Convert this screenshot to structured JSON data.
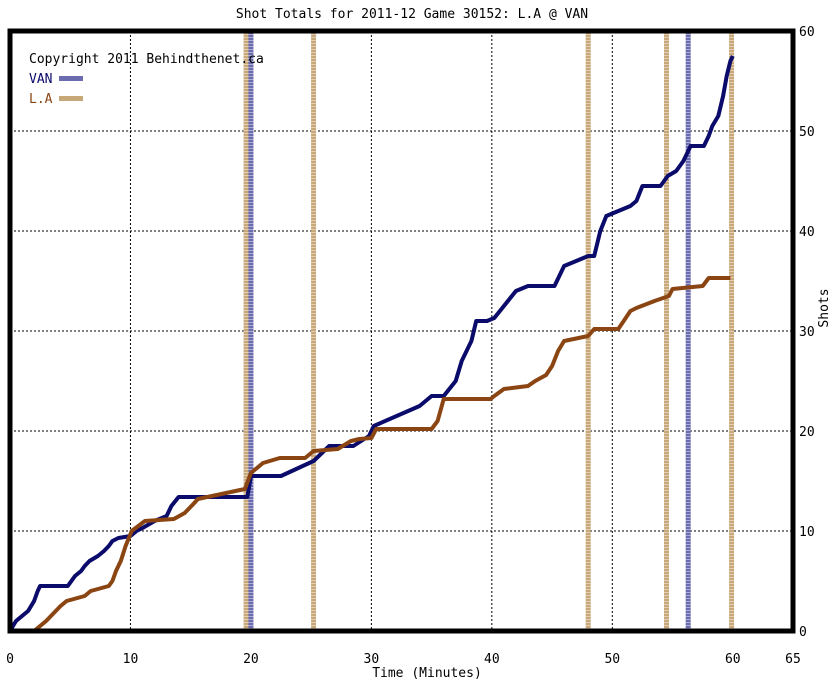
{
  "chart_data": {
    "type": "line",
    "title": "Shot Totals for 2011-12 Game 30152: L.A @ VAN",
    "xlabel": "Time (Minutes)",
    "ylabel": "Shots",
    "copyright": "Copyright 2011 Behindthenet.ca",
    "xlim": [
      0,
      65
    ],
    "ylim": [
      0,
      60
    ],
    "x_ticks": [
      0,
      10,
      20,
      30,
      40,
      50,
      60,
      65
    ],
    "y_ticks": [
      0,
      10,
      20,
      30,
      40,
      50,
      60
    ],
    "y_axis_side": "right",
    "legend_position": "top-left",
    "grid": true,
    "colors": {
      "VAN": "#0b0b6b",
      "L.A": "#8b4513",
      "grid": "#000000",
      "VAN_marker": "#6b6bb0",
      "L.A_marker": "#c8a878"
    },
    "series": [
      {
        "name": "VAN",
        "x": [
          0,
          0.5,
          1.5,
          2.0,
          2.3,
          2.5,
          4.8,
          5.4,
          5.9,
          6.2,
          6.6,
          7.3,
          7.8,
          8.2,
          8.5,
          9.0,
          10.0,
          10.5,
          11.0,
          12.0,
          13.0,
          13.4,
          14.0,
          19.7,
          20.0,
          22.5,
          25.2,
          26.5,
          27.0,
          28.5,
          29.8,
          30.2,
          34.0,
          35.0,
          36.0,
          37.0,
          37.5,
          38.3,
          38.7,
          39.2,
          39.6,
          40.2,
          41.0,
          42.0,
          43.0,
          45.2,
          46.0,
          47.0,
          48.0,
          48.5,
          49.0,
          49.5,
          51.5,
          52.0,
          52.5,
          54.0,
          54.6,
          55.3,
          55.9,
          56.5,
          57.6,
          58.0,
          58.3,
          58.8,
          59.2,
          59.5,
          59.8,
          60.0
        ],
        "values": [
          0,
          1,
          2,
          3,
          4,
          4.5,
          4.5,
          5.5,
          6,
          6.5,
          7,
          7.5,
          8,
          8.5,
          9,
          9.3,
          9.5,
          10,
          10.3,
          11,
          11.5,
          12.5,
          13.4,
          13.4,
          15.5,
          15.5,
          17,
          18.5,
          18.5,
          18.5,
          19.5,
          20.5,
          22.5,
          23.5,
          23.5,
          25,
          27,
          29,
          31,
          31,
          31,
          31.3,
          32.5,
          34,
          34.5,
          34.5,
          36.5,
          37,
          37.5,
          37.5,
          40,
          41.5,
          42.5,
          43,
          44.5,
          44.5,
          45.5,
          46,
          47,
          48.5,
          48.5,
          49.5,
          50.5,
          51.5,
          53.5,
          55.5,
          57,
          57.5
        ]
      },
      {
        "name": "L.A",
        "x": [
          0,
          2.0,
          2.5,
          3.0,
          4.2,
          4.7,
          6.2,
          6.7,
          8.2,
          8.5,
          8.8,
          9.2,
          9.6,
          10.1,
          11.2,
          13.6,
          14.5,
          15.3,
          15.6,
          19.5,
          20.0,
          21.0,
          22.4,
          24.5,
          25.2,
          27.2,
          28.3,
          29.0,
          30.0,
          30.4,
          35.0,
          35.5,
          36.0,
          39.9,
          40.2,
          41.0,
          43.0,
          43.6,
          44.5,
          45.0,
          45.5,
          46.0,
          48.0,
          48.5,
          49.0,
          50.5,
          51.5,
          52.0,
          53.5,
          54.7,
          55.0,
          57.5,
          58.0,
          59.8
        ],
        "values": [
          0,
          0,
          0.5,
          1,
          2.5,
          3,
          3.5,
          4,
          4.5,
          5,
          6,
          7,
          8.5,
          10,
          11,
          11.2,
          11.8,
          12.8,
          13.2,
          14.2,
          15.8,
          16.8,
          17.3,
          17.3,
          18,
          18.2,
          19,
          19.2,
          19.3,
          20.2,
          20.2,
          21,
          23.2,
          23.2,
          23.5,
          24.2,
          24.5,
          25,
          25.6,
          26.5,
          28,
          29,
          29.5,
          30.2,
          30.2,
          30.2,
          32,
          32.3,
          33,
          33.5,
          34.2,
          34.5,
          35.3,
          35.3
        ]
      }
    ],
    "period_markers": [
      {
        "team": "L.A",
        "x": 19.6
      },
      {
        "team": "VAN",
        "x": 20.0
      },
      {
        "team": "L.A",
        "x": 25.2
      },
      {
        "team": "L.A",
        "x": 48.0
      },
      {
        "team": "L.A",
        "x": 54.5
      },
      {
        "team": "VAN",
        "x": 56.3
      },
      {
        "team": "L.A",
        "x": 59.9
      }
    ]
  }
}
